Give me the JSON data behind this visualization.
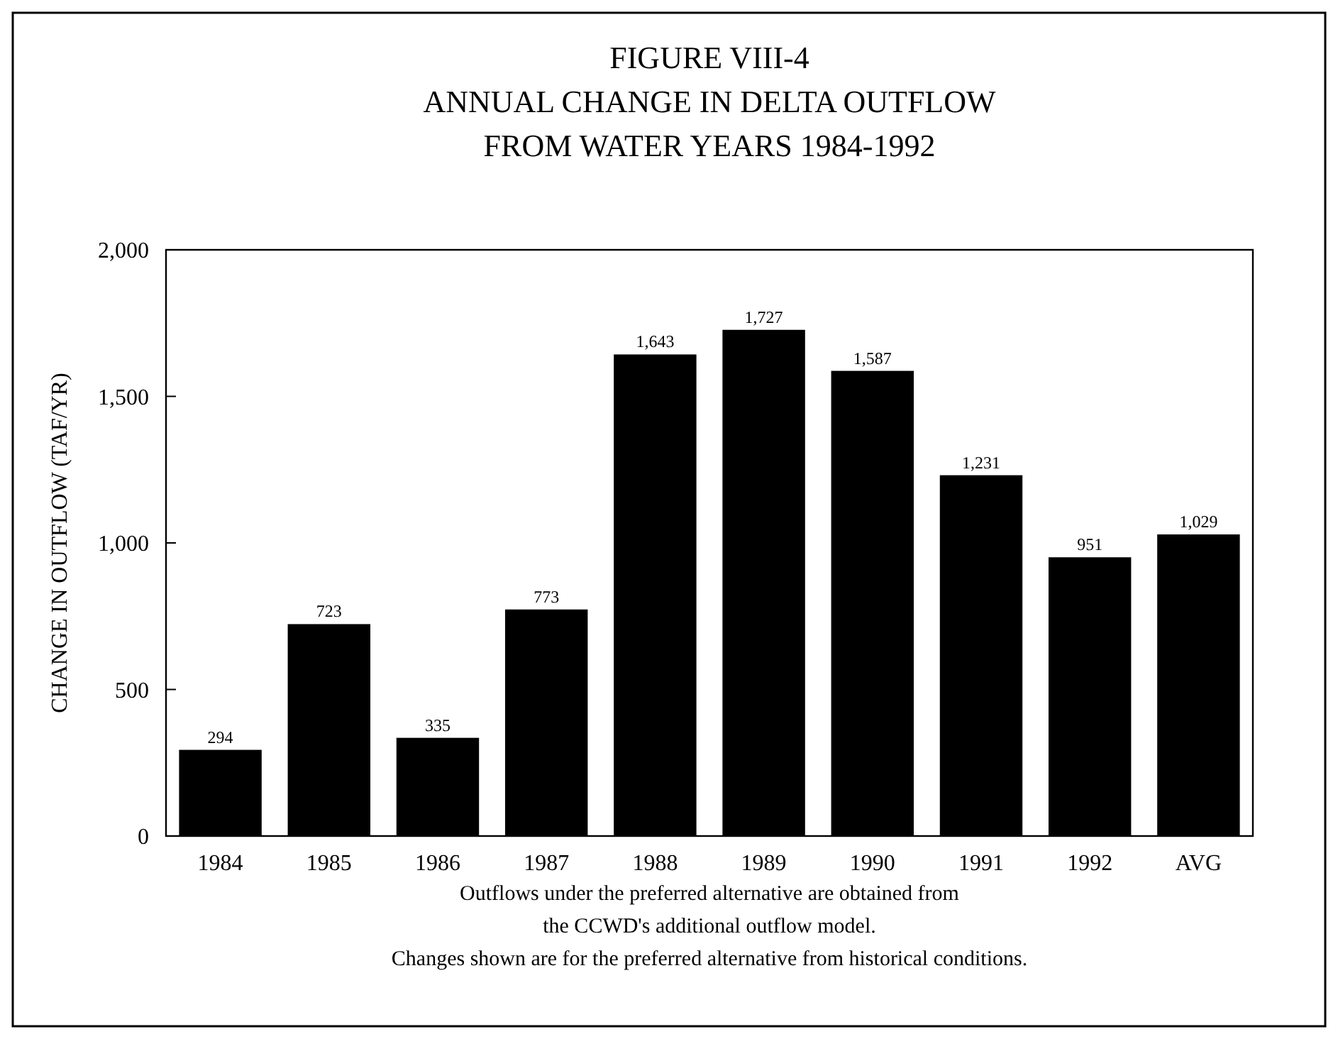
{
  "chart_data": {
    "type": "bar",
    "title": "FIGURE VIII-4\nANNUAL CHANGE IN DELTA OUTFLOW\nFROM WATER YEARS 1984-1992",
    "ylabel": "CHANGE IN OUTFLOW (TAF/YR)",
    "categories": [
      "1984",
      "1985",
      "1986",
      "1987",
      "1988",
      "1989",
      "1990",
      "1991",
      "1992",
      "AVG"
    ],
    "values": [
      294,
      723,
      335,
      773,
      1643,
      1727,
      1587,
      1231,
      951,
      1029
    ],
    "color": "#000000",
    "ylim": [
      0,
      2000
    ],
    "yticks": [
      0,
      500,
      {
        "value": 1000,
        "label": "1,000"
      },
      {
        "value": 1500,
        "label": "1,500"
      },
      {
        "value": 2000,
        "label": "2,000"
      }
    ],
    "value_labels": [
      "294",
      "723",
      "335",
      "773",
      "1,643",
      "1,727",
      "1,587",
      "1,231",
      "951",
      "1,029"
    ],
    "grid": false,
    "annotations": [
      "Outflows under the preferred alternative are obtained from",
      "the CCWD's additional outflow model.",
      "Changes shown are for the preferred alternative from historical conditions."
    ]
  }
}
